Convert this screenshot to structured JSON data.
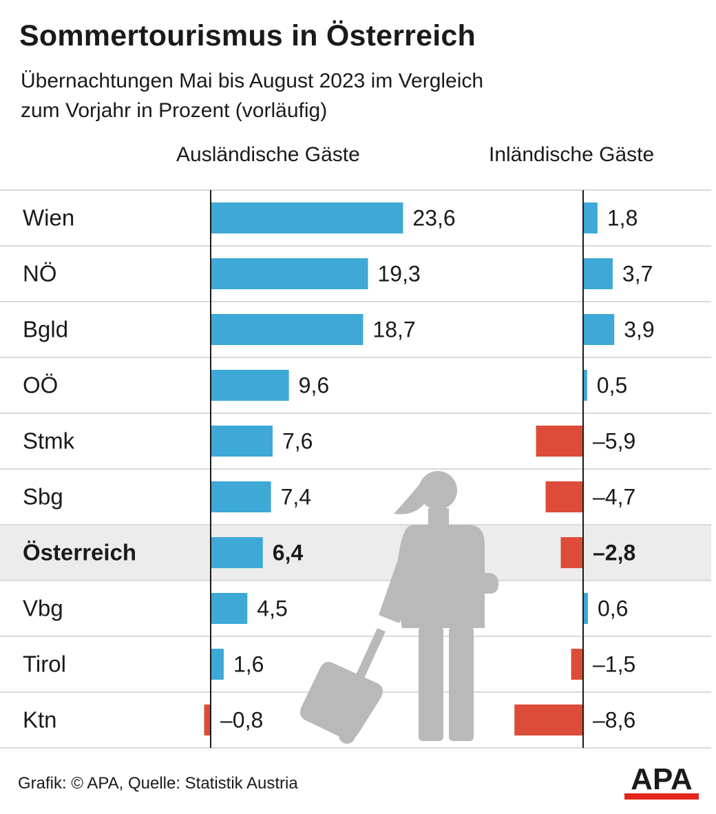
{
  "title": "Sommertourismus in Österreich",
  "subtitle_line1": "Übernachtungen Mai bis August 2023 im Vergleich",
  "subtitle_line2": "zum Vorjahr in Prozent (vorläufig)",
  "source": "Grafik: © APA, Quelle: Statistik Austria",
  "logo_text": "APA",
  "colors": {
    "positive": "#3ea8d6",
    "negative": "#dc4c38",
    "highlight_row": "#ececec",
    "gridline": "#d9d9d9",
    "axis": "#1a1a1a",
    "silhouette": "#b9b9b9",
    "logo_red": "#e2261b"
  },
  "decoration": "traveler-with-suitcase-icon",
  "chart_data": {
    "type": "bar",
    "orientation": "horizontal",
    "highlight_category": "Österreich",
    "categories": [
      "Wien",
      "NÖ",
      "Bgld",
      "OÖ",
      "Stmk",
      "Sbg",
      "Österreich",
      "Vbg",
      "Tirol",
      "Ktn"
    ],
    "series": [
      {
        "name": "Ausländische Gäste",
        "values": [
          23.6,
          19.3,
          18.7,
          9.6,
          7.6,
          7.4,
          6.4,
          4.5,
          1.6,
          -0.8
        ],
        "labels": [
          "23,6",
          "19,3",
          "18,7",
          "9,6",
          "7,6",
          "7,4",
          "6,4",
          "4,5",
          "1,6",
          "–0,8"
        ]
      },
      {
        "name": "Inländische Gäste",
        "values": [
          1.8,
          3.7,
          3.9,
          0.5,
          -5.9,
          -4.7,
          -2.8,
          0.6,
          -1.5,
          -8.6
        ],
        "labels": [
          "1,8",
          "3,7",
          "3,9",
          "0,5",
          "–5,9",
          "–4,7",
          "–2,8",
          "0,6",
          "–1,5",
          "–8,6"
        ]
      }
    ]
  }
}
